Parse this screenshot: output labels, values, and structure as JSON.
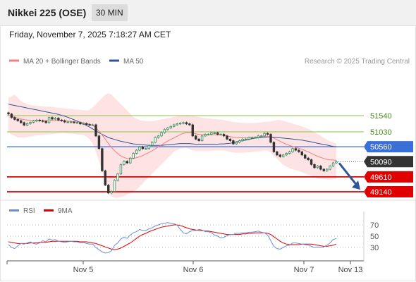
{
  "header": {
    "title": "Nikkei 225 (OSE)",
    "timeframe": "30 MIN",
    "datetime": "Friday, November 7, 2025 7:18:27 AM CET"
  },
  "legend": {
    "items": [
      {
        "label": "MA 20 + Bollinger Bands",
        "color": "#f08080"
      },
      {
        "label": "MA 50",
        "color": "#2f5597"
      }
    ],
    "credit": "Research © 2025 Trading Central"
  },
  "colors": {
    "green_level": "#8bc34a",
    "blue_level": "#3a6fd8",
    "red_level": "#e00000",
    "price_tag": "#333333",
    "band_fill": "#fde0e0",
    "candle_up": "#2e8b57",
    "candle_down": "#333333",
    "rsi": "#6a8fd8",
    "rsi_ma": "#e00000",
    "arrow": "#2f5597"
  },
  "chart_data": [
    {
      "type": "line",
      "name": "price",
      "levels": [
        {
          "value": 51540,
          "label": "51540",
          "kind": "resistance"
        },
        {
          "value": 51030,
          "label": "51030",
          "kind": "resistance"
        },
        {
          "value": 50560,
          "label": "50560",
          "kind": "pivot"
        },
        {
          "value": 50090,
          "label": "50090",
          "kind": "last"
        },
        {
          "value": 49610,
          "label": "49610",
          "kind": "support"
        },
        {
          "value": 49140,
          "label": "49140",
          "kind": "support"
        }
      ],
      "x_ticks": [
        "Nov 5",
        "Nov 6",
        "Nov 7",
        "Nov 13"
      ],
      "close": [
        51590,
        51480,
        51420,
        51380,
        51320,
        51240,
        51290,
        51330,
        51370,
        51400,
        51380,
        51360,
        51320,
        51480,
        51430,
        51460,
        51400,
        51380,
        51340,
        51340,
        51340,
        51320,
        51320,
        51280,
        51290,
        51260,
        51250,
        51250,
        50900,
        50500,
        49800,
        49350,
        49100,
        49150,
        49500,
        49700,
        50000,
        50100,
        50050,
        50200,
        50350,
        50450,
        50550,
        50500,
        50500,
        50600,
        50700,
        50850,
        50900,
        51000,
        51100,
        51150,
        51200,
        51250,
        51280,
        51300,
        51320,
        51280,
        51250,
        50900,
        50800,
        50750,
        50900,
        50950,
        50950,
        51000,
        51000,
        50950,
        50950,
        50900,
        50800,
        50750,
        50650,
        50700,
        50750,
        50800,
        50800,
        50850,
        50850,
        50850,
        50900,
        50900,
        50980,
        50950,
        50700,
        50400,
        50300,
        50250,
        50300,
        50350,
        50400,
        50500,
        50450,
        50400,
        50300,
        50200,
        50150,
        50000,
        49900,
        49950,
        49850,
        49800,
        49850,
        49950,
        50050,
        50090
      ],
      "ma50": [
        51900,
        51880,
        51860,
        51840,
        51820,
        51800,
        51780,
        51760,
        51740,
        51720,
        51700,
        51680,
        51660,
        51640,
        51620,
        51600,
        51580,
        51550,
        51520,
        51490,
        51450,
        51410,
        51370,
        51330,
        51280,
        51230,
        51180,
        51120,
        51060,
        51000,
        50950,
        50900,
        50850,
        50820,
        50790,
        50760,
        50730,
        50710,
        50690,
        50670,
        50650,
        50640,
        50630,
        50620,
        50610,
        50600,
        50600,
        50600,
        50600,
        50600,
        50610,
        50620,
        50630,
        50640,
        50650,
        50660,
        50660,
        50660,
        50660,
        50650,
        50640,
        50640,
        50640,
        50640,
        50640,
        50640,
        50640,
        50640,
        50650,
        50650,
        50660,
        50670,
        50690,
        50710,
        50730,
        50750,
        50770,
        50790,
        50810,
        50830,
        50840,
        50850,
        50860,
        50870,
        50870,
        50860,
        50850,
        50840,
        50830,
        50820,
        50810,
        50800,
        50790,
        50780,
        50770,
        50750,
        50730,
        50710,
        50690,
        50670,
        50650,
        50630,
        50610,
        50590,
        50570,
        50560
      ],
      "ma20": [
        51550,
        51520,
        51490,
        51460,
        51430,
        51410,
        51400,
        51390,
        51380,
        51380,
        51380,
        51380,
        51380,
        51390,
        51390,
        51390,
        51390,
        51390,
        51380,
        51370,
        51360,
        51350,
        51340,
        51330,
        51310,
        51290,
        51270,
        51230,
        51150,
        51050,
        50930,
        50800,
        50660,
        50540,
        50430,
        50340,
        50270,
        50220,
        50190,
        50180,
        50190,
        50210,
        50240,
        50280,
        50330,
        50380,
        50430,
        50490,
        50560,
        50620,
        50680,
        50740,
        50790,
        50840,
        50890,
        50940,
        50980,
        51000,
        51010,
        50990,
        50970,
        50950,
        50940,
        50940,
        50940,
        50940,
        50940,
        50930,
        50930,
        50920,
        50900,
        50880,
        50860,
        50850,
        50840,
        50840,
        50840,
        50840,
        50850,
        50860,
        50870,
        50880,
        50890,
        50890,
        50870,
        50830,
        50780,
        50730,
        50680,
        50640,
        50600,
        50570,
        50540,
        50510,
        50480,
        50440,
        50400,
        50350,
        50300,
        50260,
        50220,
        50190,
        50160,
        50150,
        50140,
        50130
      ],
      "bb_upper": [
        52100,
        52150,
        52200,
        52100,
        52000,
        51950,
        51900,
        51880,
        51860,
        51850,
        51840,
        51830,
        51820,
        51820,
        51810,
        51800,
        51790,
        51780,
        51770,
        51760,
        51750,
        51740,
        51730,
        51720,
        51710,
        51700,
        51720,
        51800,
        51900,
        52000,
        52100,
        52200,
        52250,
        52200,
        52100,
        52000,
        51900,
        51800,
        51700,
        51600,
        51500,
        51450,
        51400,
        51380,
        51370,
        51360,
        51360,
        51380,
        51400,
        51420,
        51440,
        51460,
        51480,
        51500,
        51520,
        51540,
        51550,
        51560,
        51560,
        51540,
        51520,
        51500,
        51480,
        51460,
        51450,
        51440,
        51430,
        51420,
        51410,
        51400,
        51380,
        51360,
        51340,
        51330,
        51320,
        51310,
        51300,
        51300,
        51300,
        51310,
        51320,
        51330,
        51340,
        51350,
        51360,
        51380,
        51400,
        51400,
        51380,
        51350,
        51320,
        51290,
        51260,
        51230,
        51200,
        51160,
        51120,
        51080,
        51020,
        50960,
        50900,
        50840,
        50780,
        50730,
        50690,
        50660
      ],
      "bb_lower": [
        51000,
        50950,
        50900,
        50850,
        50850,
        50850,
        50860,
        50880,
        50900,
        50920,
        50920,
        50930,
        50940,
        50950,
        50960,
        50970,
        50980,
        50990,
        50990,
        50980,
        50970,
        50960,
        50950,
        50940,
        50920,
        50880,
        50800,
        50650,
        50400,
        50100,
        49800,
        49500,
        49200,
        49000,
        48950,
        48950,
        48980,
        49000,
        49050,
        49100,
        49150,
        49200,
        49300,
        49400,
        49500,
        49600,
        49700,
        49800,
        49900,
        50000,
        50100,
        50200,
        50300,
        50400,
        50450,
        50500,
        50520,
        50520,
        50480,
        50440,
        50420,
        50420,
        50420,
        50420,
        50420,
        50430,
        50440,
        50440,
        50440,
        50440,
        50420,
        50400,
        50380,
        50370,
        50370,
        50370,
        50380,
        50380,
        50390,
        50400,
        50410,
        50420,
        50430,
        50430,
        50380,
        50280,
        50180,
        50080,
        49990,
        49930,
        49880,
        49850,
        49820,
        49790,
        49760,
        49720,
        49680,
        49640,
        49600,
        49570,
        49550,
        49540,
        49530,
        49530,
        49540,
        49550
      ]
    },
    {
      "type": "line",
      "name": "RSI",
      "series_labels": [
        "RSI",
        "9MA"
      ],
      "y_ticks": [
        70,
        50,
        30
      ],
      "ylim": [
        0,
        100
      ],
      "rsi": [
        35,
        30,
        28,
        33,
        37,
        36,
        38,
        40,
        37,
        36,
        38,
        42,
        40,
        45,
        43,
        44,
        41,
        40,
        39,
        40,
        41,
        40,
        40,
        38,
        39,
        37,
        36,
        36,
        30,
        26,
        22,
        20,
        21,
        24,
        34,
        38,
        45,
        48,
        46,
        52,
        56,
        58,
        62,
        60,
        60,
        63,
        65,
        68,
        70,
        72,
        73,
        74,
        73,
        72,
        70,
        62,
        56,
        54,
        58,
        60,
        60,
        62,
        61,
        58,
        58,
        56,
        52,
        50,
        47,
        48,
        51,
        53,
        53,
        55,
        55,
        56,
        56,
        57,
        57,
        58,
        59,
        57,
        56,
        52,
        42,
        32,
        28,
        27,
        30,
        33,
        34,
        38,
        38,
        37,
        36,
        35,
        34,
        32,
        30,
        31,
        30,
        31,
        34,
        38,
        44,
        46
      ],
      "rsi_ma": [
        40,
        39,
        38,
        37,
        37,
        37,
        37,
        38,
        38,
        38,
        39,
        39,
        39,
        40,
        41,
        41,
        41,
        41,
        41,
        41,
        41,
        41,
        41,
        40,
        40,
        40,
        39,
        38,
        37,
        35,
        33,
        31,
        29,
        27,
        26,
        27,
        29,
        32,
        35,
        38,
        42,
        46,
        50,
        53,
        55,
        58,
        60,
        62,
        64,
        66,
        67,
        68,
        69,
        70,
        70,
        69,
        67,
        65,
        63,
        62,
        61,
        60,
        60,
        59,
        59,
        58,
        57,
        56,
        55,
        54,
        53,
        53,
        53,
        53,
        53,
        54,
        54,
        55,
        55,
        56,
        56,
        56,
        56,
        55,
        53,
        49,
        45,
        41,
        38,
        36,
        35,
        35,
        35,
        35,
        36,
        36,
        36,
        36,
        35,
        34,
        33,
        32,
        32,
        33,
        34,
        36
      ]
    }
  ]
}
